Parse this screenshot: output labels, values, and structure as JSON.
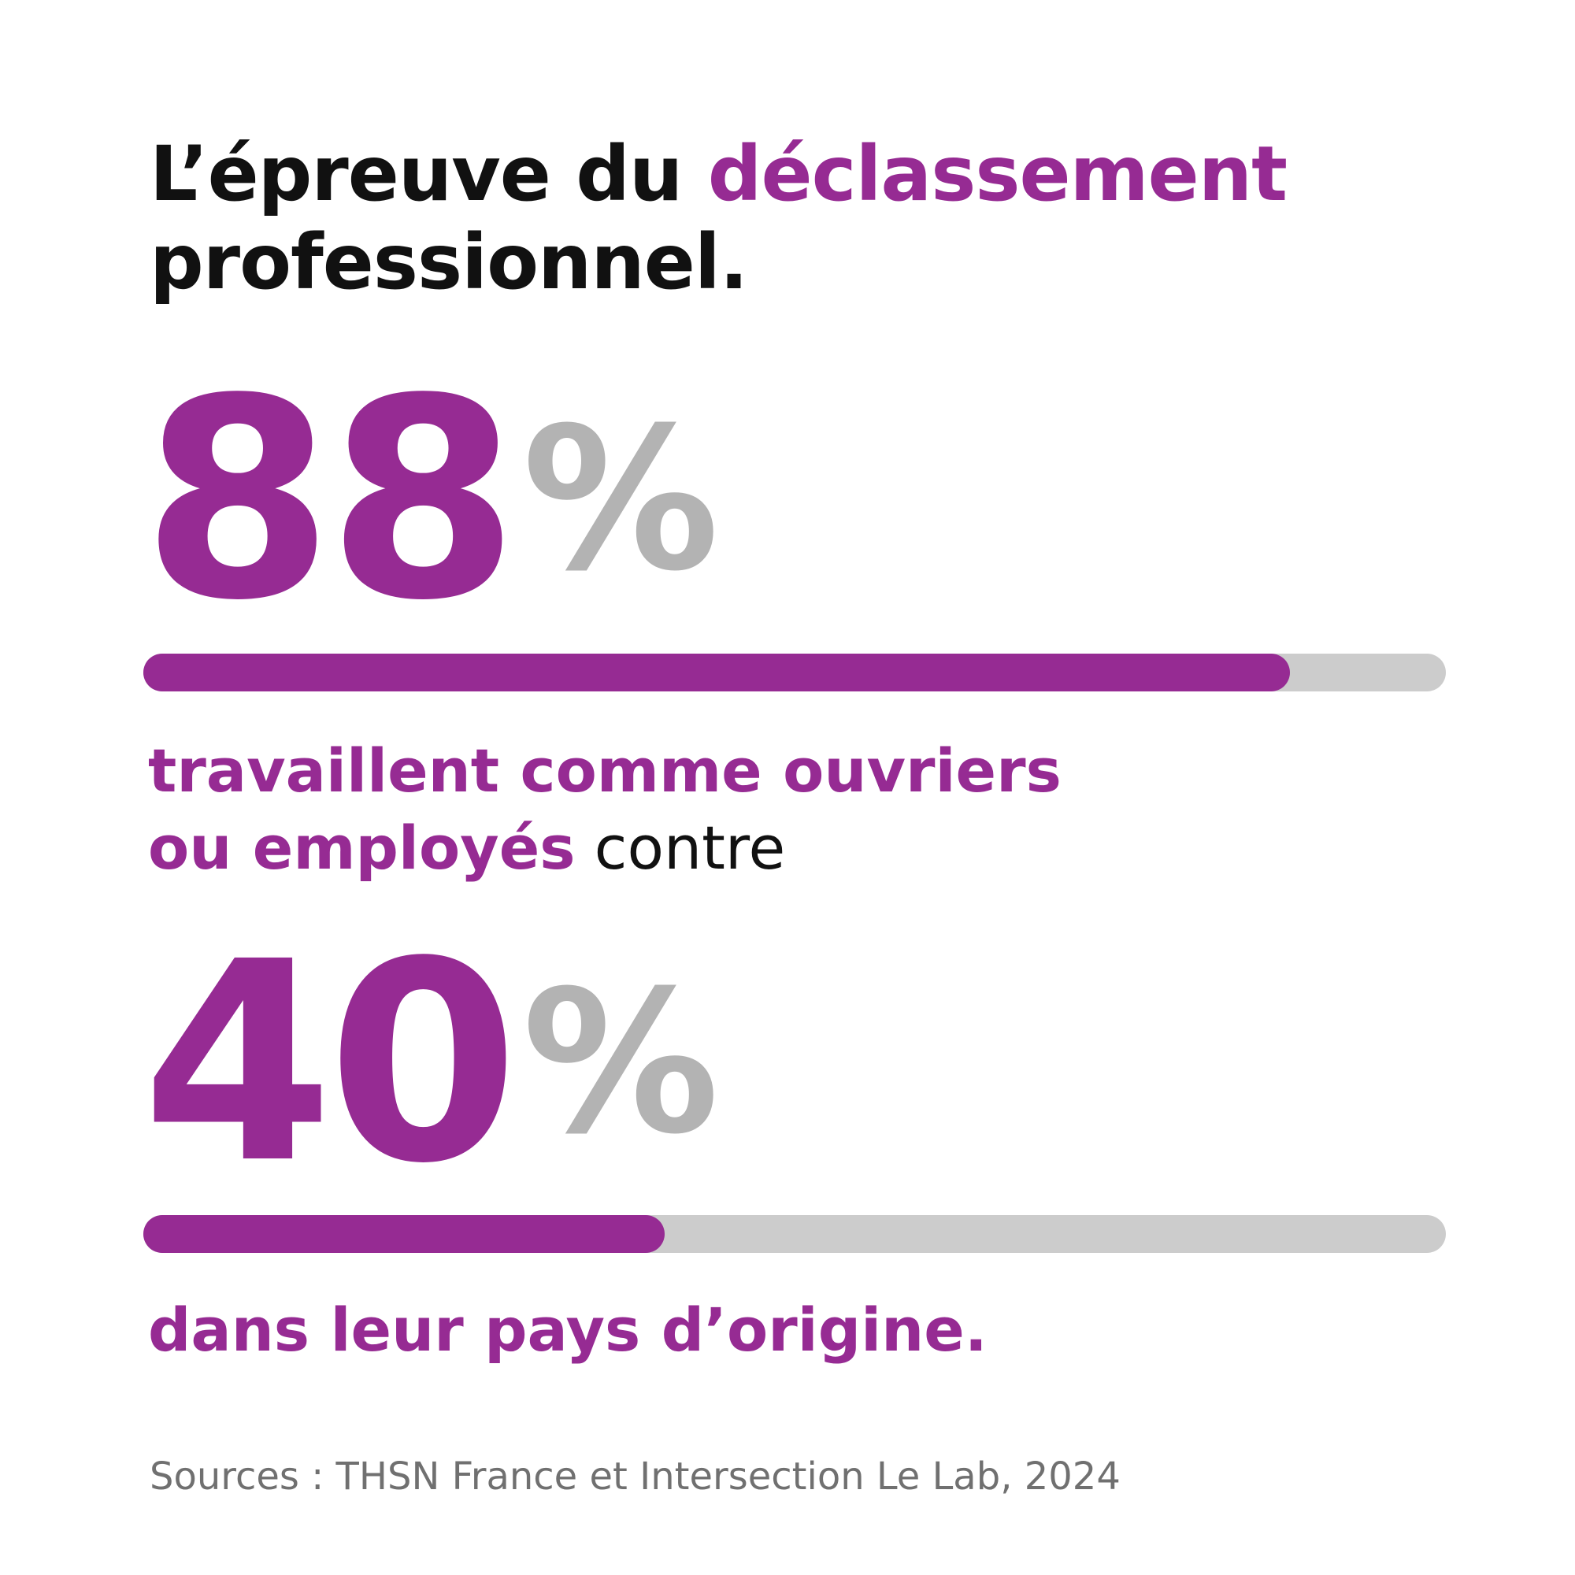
{
  "title": {
    "part1": "L’épreuve du ",
    "accent": "déclassement",
    "line2": "professionnel."
  },
  "chart_data": {
    "type": "bar",
    "max": 100,
    "items": [
      {
        "value": 88,
        "value_text": "88",
        "unit": "%",
        "caption_accent_1": "travaillent comme ouvriers",
        "caption_accent_2": "ou employés",
        "caption_plain": " contre"
      },
      {
        "value": 40,
        "value_text": "40",
        "unit": "%",
        "caption_accent": "dans leur pays d’origine."
      }
    ]
  },
  "source": "Sources : THSN France et Intersection Le Lab, 2024",
  "colors": {
    "accent": "#962b93",
    "track": "#cccccc",
    "percent_sign": "#b3b3b3",
    "text": "#111111",
    "source_text": "#707070"
  }
}
